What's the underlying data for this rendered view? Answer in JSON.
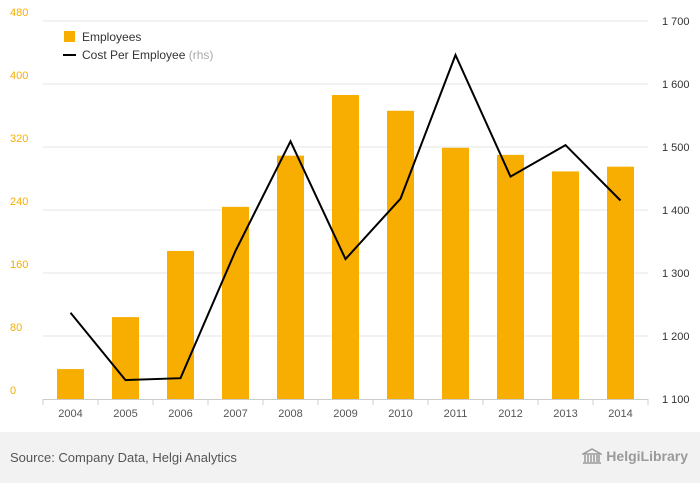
{
  "colors": {
    "bar": "#F7AE00",
    "line": "#000000",
    "left_axis": "#F7AE00",
    "right_axis": "#333333",
    "grid": "#e5e5e5",
    "axis": "#cccccc"
  },
  "footer": {
    "source": "Source: Company Data, Helgi Analytics",
    "brand": "HelgiLibrary",
    "brand_icon": "library-building-icon"
  },
  "chart_data": {
    "type": "bar",
    "categories": [
      "2004",
      "2005",
      "2006",
      "2007",
      "2008",
      "2009",
      "2010",
      "2011",
      "2012",
      "2013",
      "2014"
    ],
    "series": [
      {
        "name": "Employees",
        "type": "bar",
        "axis": "left",
        "values": [
          38,
          104,
          188,
          244,
          309,
          386,
          366,
          319,
          310,
          289,
          295
        ]
      },
      {
        "name": "Cost Per Employee",
        "name_suffix": "(rhs)",
        "type": "line",
        "axis": "right",
        "values": [
          1237,
          1130,
          1133,
          1335,
          1509,
          1322,
          1418,
          1646,
          1453,
          1503,
          1415
        ]
      }
    ],
    "y_left": {
      "ylim": [
        0,
        480
      ],
      "ticks": [
        "0",
        "80",
        "160",
        "240",
        "320",
        "400",
        "480"
      ]
    },
    "y_right": {
      "ylim": [
        1100,
        1700
      ],
      "ticks": [
        "1 100",
        "1 200",
        "1 300",
        "1 400",
        "1 500",
        "1 600",
        "1 700"
      ]
    },
    "legend": {
      "placement": "top-left"
    },
    "grid": true
  }
}
